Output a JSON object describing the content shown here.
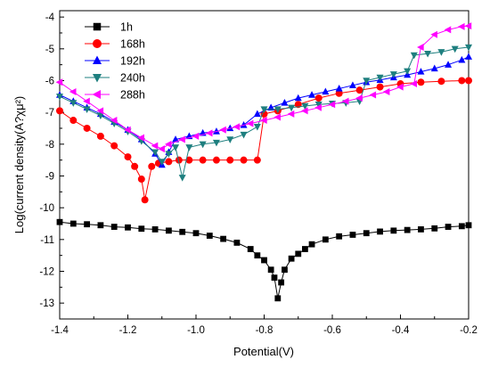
{
  "chart_data": {
    "type": "scatter",
    "xlabel": "Potential(V)",
    "ylabel": "Log(current density(A?χμ²)",
    "xlim": [
      -1.4,
      -0.2
    ],
    "ylim": [
      -13.5,
      -3.8
    ],
    "grid": false,
    "legend_position": "top-left",
    "x_ticks": [
      "-1.4",
      "-1.2",
      "-1.0",
      "-0.8",
      "-0.6",
      "-0.4",
      "-0.2"
    ],
    "y_ticks": [
      "-4",
      "-5",
      "-6",
      "-7",
      "-8",
      "-9",
      "-10",
      "-11",
      "-12",
      "-13"
    ],
    "series": [
      {
        "name": "1h",
        "color": "#000000",
        "marker": "square",
        "x": [
          -1.4,
          -1.36,
          -1.32,
          -1.28,
          -1.24,
          -1.2,
          -1.16,
          -1.12,
          -1.08,
          -1.04,
          -1.0,
          -0.96,
          -0.92,
          -0.88,
          -0.84,
          -0.82,
          -0.8,
          -0.78,
          -0.77,
          -0.76,
          -0.75,
          -0.74,
          -0.72,
          -0.7,
          -0.68,
          -0.66,
          -0.62,
          -0.58,
          -0.54,
          -0.5,
          -0.46,
          -0.42,
          -0.38,
          -0.34,
          -0.3,
          -0.26,
          -0.22,
          -0.2
        ],
        "y": [
          -10.45,
          -10.5,
          -10.52,
          -10.55,
          -10.6,
          -10.62,
          -10.66,
          -10.68,
          -10.72,
          -10.76,
          -10.8,
          -10.88,
          -10.98,
          -11.1,
          -11.3,
          -11.5,
          -11.65,
          -11.95,
          -12.2,
          -12.85,
          -12.35,
          -11.95,
          -11.6,
          -11.45,
          -11.3,
          -11.15,
          -11.0,
          -10.9,
          -10.85,
          -10.8,
          -10.75,
          -10.72,
          -10.7,
          -10.68,
          -10.65,
          -10.6,
          -10.58,
          -10.55
        ]
      },
      {
        "name": "168h",
        "color": "#ff0000",
        "marker": "circle",
        "x": [
          -1.4,
          -1.36,
          -1.32,
          -1.28,
          -1.24,
          -1.2,
          -1.18,
          -1.16,
          -1.15,
          -1.13,
          -1.11,
          -1.08,
          -1.05,
          -1.02,
          -0.98,
          -0.94,
          -0.9,
          -0.86,
          -0.82,
          -0.8,
          -0.76,
          -0.7,
          -0.64,
          -0.58,
          -0.52,
          -0.46,
          -0.4,
          -0.34,
          -0.28,
          -0.22,
          -0.2
        ],
        "y": [
          -6.95,
          -7.25,
          -7.5,
          -7.75,
          -8.05,
          -8.4,
          -8.7,
          -9.1,
          -9.75,
          -8.7,
          -8.6,
          -8.55,
          -8.5,
          -8.5,
          -8.5,
          -8.5,
          -8.5,
          -8.5,
          -8.5,
          -7.05,
          -6.95,
          -6.75,
          -6.55,
          -6.4,
          -6.3,
          -6.2,
          -6.1,
          -6.05,
          -6.02,
          -6.0,
          -6.0
        ]
      },
      {
        "name": "192h",
        "color": "#0000ff",
        "marker": "triangle-up",
        "x": [
          -1.4,
          -1.36,
          -1.32,
          -1.28,
          -1.24,
          -1.2,
          -1.16,
          -1.12,
          -1.1,
          -1.08,
          -1.06,
          -1.02,
          -0.98,
          -0.94,
          -0.9,
          -0.86,
          -0.82,
          -0.78,
          -0.74,
          -0.7,
          -0.66,
          -0.62,
          -0.58,
          -0.54,
          -0.5,
          -0.46,
          -0.42,
          -0.38,
          -0.34,
          -0.3,
          -0.26,
          -0.22,
          -0.2
        ],
        "y": [
          -6.45,
          -6.65,
          -6.85,
          -7.05,
          -7.3,
          -7.55,
          -7.85,
          -8.3,
          -8.65,
          -8.25,
          -7.85,
          -7.75,
          -7.65,
          -7.6,
          -7.5,
          -7.4,
          -7.05,
          -6.85,
          -6.7,
          -6.55,
          -6.45,
          -6.35,
          -6.25,
          -6.15,
          -6.05,
          -5.98,
          -5.9,
          -5.82,
          -5.72,
          -5.62,
          -5.5,
          -5.35,
          -5.25
        ]
      },
      {
        "name": "240h",
        "color": "#1e7f7f",
        "marker": "triangle-down",
        "x": [
          -1.4,
          -1.36,
          -1.32,
          -1.28,
          -1.24,
          -1.2,
          -1.16,
          -1.12,
          -1.1,
          -1.08,
          -1.06,
          -1.04,
          -1.02,
          -0.98,
          -0.94,
          -0.9,
          -0.86,
          -0.82,
          -0.8,
          -0.76,
          -0.72,
          -0.68,
          -0.64,
          -0.6,
          -0.56,
          -0.52,
          -0.5,
          -0.46,
          -0.42,
          -0.38,
          -0.36,
          -0.32,
          -0.28,
          -0.24,
          -0.2
        ],
        "y": [
          -6.5,
          -6.7,
          -6.9,
          -7.1,
          -7.35,
          -7.6,
          -7.9,
          -8.25,
          -8.55,
          -8.3,
          -8.1,
          -9.05,
          -8.1,
          -8.0,
          -7.95,
          -7.85,
          -7.7,
          -7.45,
          -6.9,
          -6.9,
          -6.85,
          -6.8,
          -6.75,
          -6.72,
          -6.7,
          -6.65,
          -6.0,
          -5.9,
          -5.8,
          -5.7,
          -5.2,
          -5.15,
          -5.1,
          -5.0,
          -4.95
        ]
      },
      {
        "name": "288h",
        "color": "#ff00ff",
        "marker": "triangle-left",
        "x": [
          -1.4,
          -1.36,
          -1.32,
          -1.28,
          -1.24,
          -1.2,
          -1.16,
          -1.12,
          -1.1,
          -1.08,
          -1.04,
          -1.0,
          -0.96,
          -0.92,
          -0.88,
          -0.84,
          -0.8,
          -0.76,
          -0.72,
          -0.68,
          -0.64,
          -0.6,
          -0.56,
          -0.52,
          -0.48,
          -0.44,
          -0.4,
          -0.36,
          -0.34,
          -0.3,
          -0.26,
          -0.22,
          -0.2
        ],
        "y": [
          -6.05,
          -6.35,
          -6.65,
          -6.95,
          -7.25,
          -7.55,
          -7.8,
          -8.05,
          -8.15,
          -8.0,
          -7.85,
          -7.75,
          -7.65,
          -7.55,
          -7.45,
          -7.35,
          -7.25,
          -7.15,
          -7.05,
          -6.95,
          -6.85,
          -6.75,
          -6.65,
          -6.55,
          -6.45,
          -6.35,
          -6.2,
          -6.1,
          -4.95,
          -4.55,
          -4.4,
          -4.3,
          -4.28
        ]
      }
    ]
  }
}
